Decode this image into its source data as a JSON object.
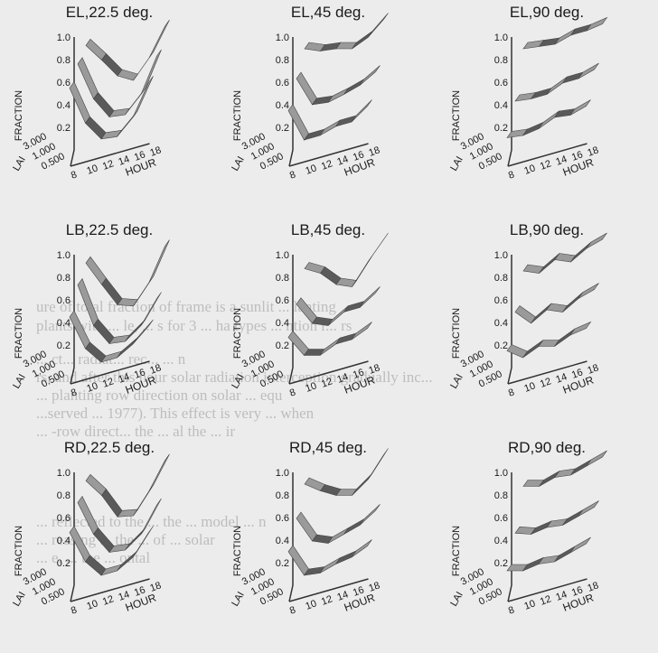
{
  "chart_data": [
    {
      "type": "line",
      "title": "EL,22.5 deg.",
      "zlabel": "FRACTION",
      "xlabel": "HOUR",
      "ylabel": "LAI",
      "x": [
        8,
        10,
        12,
        14,
        16,
        18
      ],
      "yticks": [
        "3.000",
        "1.000",
        "0.500"
      ],
      "zticks": [
        "1.0",
        "0.8",
        "0.6",
        "0.4",
        "0.2"
      ],
      "zlim": [
        0,
        1
      ],
      "series": [
        {
          "lai": "3.000",
          "values": [
            0.95,
            0.78,
            0.6,
            0.52,
            0.68,
            0.92
          ]
        },
        {
          "lai": "1.000",
          "values": [
            0.85,
            0.5,
            0.3,
            0.28,
            0.42,
            0.72
          ]
        },
        {
          "lai": "0.500",
          "values": [
            0.7,
            0.35,
            0.17,
            0.15,
            0.28,
            0.55
          ]
        }
      ]
    },
    {
      "type": "line",
      "title": "EL,45 deg.",
      "zlabel": "FRACTION",
      "xlabel": "HOUR",
      "ylabel": "LAI",
      "x": [
        8,
        10,
        12,
        14,
        16,
        18
      ],
      "yticks": [
        "3.000",
        "1.000",
        "0.500"
      ],
      "zticks": [
        "1.0",
        "0.8",
        "0.6",
        "0.4",
        "0.2"
      ],
      "zlim": [
        0,
        1
      ],
      "series": [
        {
          "lai": "3.000",
          "values": [
            0.92,
            0.86,
            0.84,
            0.8,
            0.86,
            0.98
          ]
        },
        {
          "lai": "1.000",
          "values": [
            0.72,
            0.45,
            0.43,
            0.46,
            0.5,
            0.58
          ]
        },
        {
          "lai": "0.500",
          "values": [
            0.5,
            0.2,
            0.2,
            0.24,
            0.24,
            0.34
          ]
        }
      ]
    },
    {
      "type": "line",
      "title": "EL,90 deg.",
      "zlabel": "FRACTION",
      "xlabel": "HOUR",
      "ylabel": "LAI",
      "x": [
        8,
        10,
        12,
        14,
        16,
        18
      ],
      "yticks": [
        "3.000",
        "1.000",
        "0.500"
      ],
      "zticks": [
        "1.0",
        "0.8",
        "0.6",
        "0.4",
        "0.2"
      ],
      "zlim": [
        0,
        1
      ],
      "series": [
        {
          "lai": "3.000",
          "values": [
            0.92,
            0.9,
            0.88,
            0.92,
            0.92,
            0.94
          ]
        },
        {
          "lai": "1.000",
          "values": [
            0.52,
            0.5,
            0.5,
            0.56,
            0.56,
            0.6
          ]
        },
        {
          "lai": "0.500",
          "values": [
            0.26,
            0.24,
            0.26,
            0.32,
            0.3,
            0.34
          ]
        }
      ]
    },
    {
      "type": "line",
      "title": "LB,22.5 deg.",
      "zlabel": "FRACTION",
      "xlabel": "HOUR",
      "ylabel": "LAI",
      "x": [
        8,
        10,
        12,
        14,
        16,
        18
      ],
      "yticks": [
        "3.000",
        "1.000",
        "0.500"
      ],
      "zticks": [
        "1.0",
        "0.8",
        "0.6",
        "0.4",
        "0.2"
      ],
      "zlim": [
        0,
        1
      ],
      "series": [
        {
          "lai": "3.000",
          "values": [
            0.95,
            0.72,
            0.5,
            0.45,
            0.62,
            0.9
          ]
        },
        {
          "lai": "1.000",
          "values": [
            0.82,
            0.42,
            0.22,
            0.2,
            0.3,
            0.5
          ]
        },
        {
          "lai": "0.500",
          "values": [
            0.6,
            0.28,
            0.12,
            0.12,
            0.2,
            0.32
          ]
        }
      ]
    },
    {
      "type": "line",
      "title": "LB,45 deg.",
      "zlabel": "FRACTION",
      "xlabel": "HOUR",
      "ylabel": "LAI",
      "x": [
        8,
        10,
        12,
        14,
        16,
        18
      ],
      "yticks": [
        "3.000",
        "1.000",
        "0.500"
      ],
      "zticks": [
        "1.0",
        "0.8",
        "0.6",
        "0.4",
        "0.2"
      ],
      "zlim": [
        0,
        1
      ],
      "series": [
        {
          "lai": "3.000",
          "values": [
            0.9,
            0.82,
            0.68,
            0.62,
            0.8,
            0.96
          ]
        },
        {
          "lai": "1.000",
          "values": [
            0.65,
            0.44,
            0.38,
            0.46,
            0.46,
            0.55
          ]
        },
        {
          "lai": "0.500",
          "values": [
            0.42,
            0.22,
            0.18,
            0.24,
            0.24,
            0.3
          ]
        }
      ]
    },
    {
      "type": "line",
      "title": "LB,90 deg.",
      "zlabel": "FRACTION",
      "xlabel": "HOUR",
      "ylabel": "LAI",
      "x": [
        8,
        10,
        12,
        14,
        16,
        18
      ],
      "yticks": [
        "3.000",
        "1.000",
        "0.500"
      ],
      "zticks": [
        "1.0",
        "0.8",
        "0.6",
        "0.4",
        "0.2"
      ],
      "zlim": [
        0,
        1
      ],
      "series": [
        {
          "lai": "3.000",
          "values": [
            0.88,
            0.82,
            0.9,
            0.84,
            0.92,
            0.96
          ]
        },
        {
          "lai": "1.000",
          "values": [
            0.58,
            0.44,
            0.52,
            0.46,
            0.54,
            0.58
          ]
        },
        {
          "lai": "0.500",
          "values": [
            0.3,
            0.2,
            0.26,
            0.22,
            0.28,
            0.3
          ]
        }
      ]
    },
    {
      "type": "line",
      "title": "RD,22.5 deg.",
      "zlabel": "FRACTION",
      "xlabel": "HOUR",
      "ylabel": "LAI",
      "x": [
        8,
        10,
        12,
        14,
        16,
        18
      ],
      "yticks": [
        "3.000",
        "1.000",
        "0.500"
      ],
      "zticks": [
        "1.0",
        "0.8",
        "0.6",
        "0.4",
        "0.2"
      ],
      "zlim": [
        0,
        1
      ],
      "series": [
        {
          "lai": "3.000",
          "values": [
            0.95,
            0.78,
            0.55,
            0.52,
            0.7,
            0.93
          ]
        },
        {
          "lai": "1.000",
          "values": [
            0.82,
            0.5,
            0.3,
            0.28,
            0.38,
            0.6
          ]
        },
        {
          "lai": "0.500",
          "values": [
            0.62,
            0.32,
            0.16,
            0.16,
            0.24,
            0.42
          ]
        }
      ]
    },
    {
      "type": "line",
      "title": "RD,45 deg.",
      "zlabel": "FRACTION",
      "xlabel": "HOUR",
      "ylabel": "LAI",
      "x": [
        8,
        10,
        12,
        14,
        16,
        18
      ],
      "yticks": [
        "3.000",
        "1.000",
        "0.500"
      ],
      "zticks": [
        "1.0",
        "0.8",
        "0.6",
        "0.4",
        "0.2"
      ],
      "zlim": [
        0,
        1
      ],
      "series": [
        {
          "lai": "3.000",
          "values": [
            0.92,
            0.82,
            0.74,
            0.7,
            0.8,
            0.98
          ]
        },
        {
          "lai": "1.000",
          "values": [
            0.68,
            0.44,
            0.38,
            0.42,
            0.46,
            0.55
          ]
        },
        {
          "lai": "0.500",
          "values": [
            0.45,
            0.2,
            0.18,
            0.22,
            0.24,
            0.3
          ]
        }
      ]
    },
    {
      "type": "line",
      "title": "RD,90 deg.",
      "zlabel": "FRACTION",
      "xlabel": "HOUR",
      "ylabel": "LAI",
      "x": [
        8,
        10,
        12,
        14,
        16,
        18
      ],
      "yticks": [
        "3.000",
        "1.000",
        "0.500"
      ],
      "zticks": [
        "1.0",
        "0.8",
        "0.6",
        "0.4",
        "0.2"
      ],
      "zlim": [
        0,
        1
      ],
      "series": [
        {
          "lai": "3.000",
          "values": [
            0.9,
            0.86,
            0.9,
            0.88,
            0.92,
            0.96
          ]
        },
        {
          "lai": "1.000",
          "values": [
            0.55,
            0.5,
            0.52,
            0.5,
            0.54,
            0.58
          ]
        },
        {
          "lai": "0.500",
          "values": [
            0.28,
            0.24,
            0.26,
            0.24,
            0.28,
            0.32
          ]
        }
      ]
    }
  ],
  "background_text": [
    "ure of total fraction of frame is a sunlit ... lanting",
    "plants with ... le, ... s for 3 ... ha types ... ntion r... rs",
    "... ct... radiat... rec... ... n",
    "rs, and after this hour solar radiation interception gradually inc...",
    "... planting row direction on solar ... equ",
    "...served ... 1977). This effect is very ... when",
    "... -row direct... the ... al the ... ir",
    "... reflected to the ... the ... model ... n",
    "... reasing ... the ... of ... solar",
    "... e, ... the ... ontal"
  ]
}
